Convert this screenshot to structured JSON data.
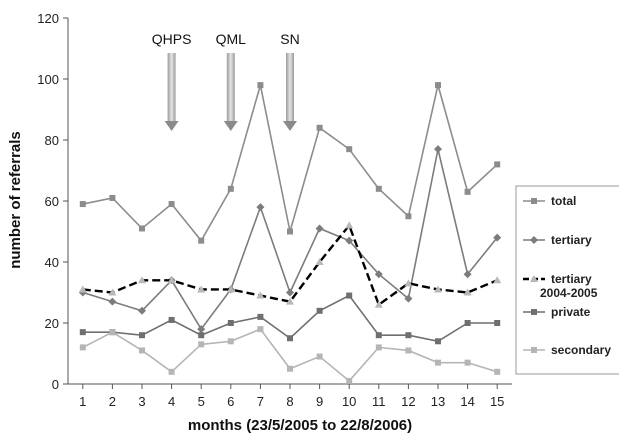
{
  "chart_data": {
    "type": "line",
    "title": "",
    "xlabel": "months (23/5/2005 to 22/8/2006)",
    "ylabel": "number of referrals",
    "x": [
      1,
      2,
      3,
      4,
      5,
      6,
      7,
      8,
      9,
      10,
      11,
      12,
      13,
      14,
      15
    ],
    "x_tick_labels": [
      "1",
      "2",
      "3",
      "4",
      "5",
      "6",
      "7",
      "8",
      "9",
      "10",
      "11",
      "12",
      "13",
      "14",
      "15"
    ],
    "xlim": [
      0.5,
      15.5
    ],
    "ylim": [
      0,
      120
    ],
    "y_ticks": [
      0,
      20,
      40,
      60,
      80,
      100,
      120
    ],
    "y_tick_labels": [
      "0",
      "20",
      "40",
      "60",
      "80",
      "100",
      "120"
    ],
    "grid": false,
    "legend_position": "right",
    "series": [
      {
        "name": "total",
        "color": "#8c8c8c",
        "dash": "",
        "marker": "square",
        "values": [
          59,
          61,
          51,
          59,
          47,
          64,
          98,
          50,
          84,
          77,
          64,
          55,
          98,
          63,
          72
        ]
      },
      {
        "name": "tertiary",
        "color": "#7c7c7c",
        "dash": "",
        "marker": "diamond",
        "values": [
          30,
          27,
          24,
          34,
          18,
          31,
          58,
          30,
          51,
          47,
          36,
          28,
          77,
          36,
          48
        ]
      },
      {
        "name": "tertiary 2004-2005",
        "color": "#000000",
        "dash": "8,4",
        "marker": "triangle",
        "values": [
          31,
          30,
          34,
          34,
          31,
          31,
          29,
          27,
          40,
          52,
          26,
          33,
          31,
          30,
          34
        ]
      },
      {
        "name": "private",
        "color": "#6f6f6f",
        "dash": "",
        "marker": "square",
        "values": [
          17,
          17,
          16,
          21,
          16,
          20,
          22,
          15,
          24,
          29,
          16,
          16,
          14,
          20,
          20
        ]
      },
      {
        "name": "secondary",
        "color": "#b5b5b5",
        "dash": "",
        "marker": "square",
        "values": [
          12,
          17,
          11,
          4,
          13,
          14,
          18,
          5,
          9,
          1,
          12,
          11,
          7,
          7,
          4
        ]
      }
    ],
    "annotations": [
      {
        "label": "QHPS",
        "x": 4
      },
      {
        "label": "QML",
        "x": 6
      },
      {
        "label": "SN",
        "x": 8
      }
    ],
    "legend_labels": [
      {
        "line1": "total",
        "line2": ""
      },
      {
        "line1": "tertiary",
        "line2": ""
      },
      {
        "line1": "tertiary",
        "line2": "2004-2005"
      },
      {
        "line1": "private",
        "line2": ""
      },
      {
        "line1": "secondary",
        "line2": ""
      }
    ]
  }
}
